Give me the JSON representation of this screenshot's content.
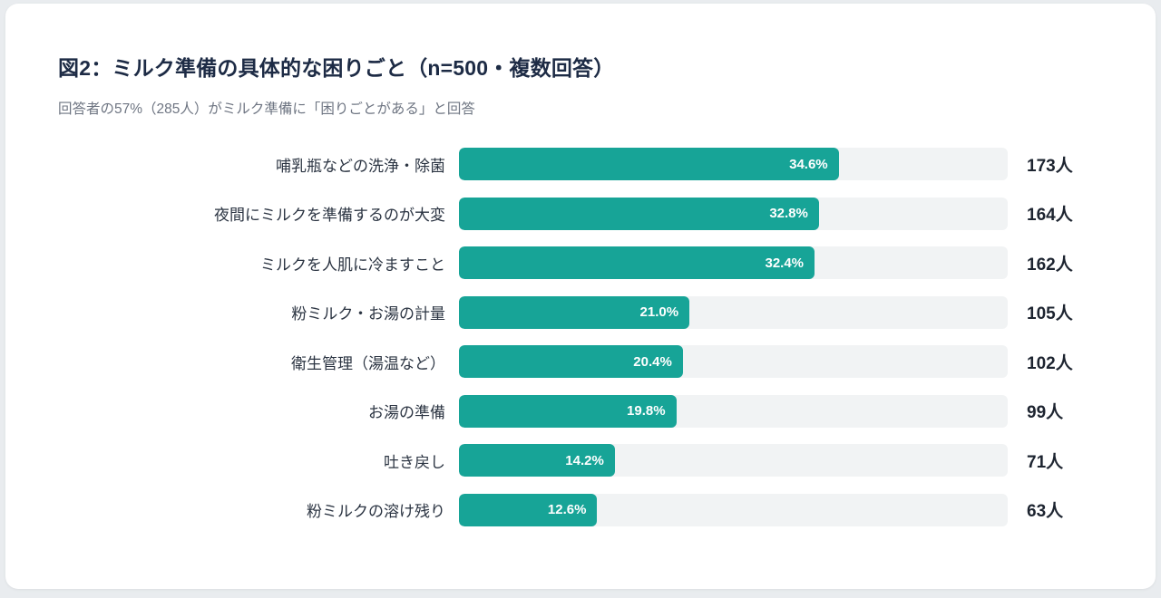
{
  "header": {
    "title": "図2：ミルク準備の具体的な困りごと（n=500・複数回答）",
    "subtitle": "回答者の57%（285人）がミルク準備に「困りごとがある」と回答"
  },
  "chart_data": {
    "type": "bar",
    "orientation": "horizontal",
    "title": "図2：ミルク準備の具体的な困りごと（n=500・複数回答）",
    "subtitle": "回答者の57%（285人）がミルク準備に「困りごとがある」と回答",
    "n": 500,
    "categories": [
      "哺乳瓶などの洗浄・除菌",
      "夜間にミルクを準備するのが大変",
      "ミルクを人肌に冷ますこと",
      "粉ミルク・お湯の計量",
      "衛生管理（湯温など）",
      "お湯の準備",
      "吐き戻し",
      "粉ミルクの溶け残り"
    ],
    "values_percent": [
      34.6,
      32.8,
      32.4,
      21.0,
      20.4,
      19.8,
      14.2,
      12.6
    ],
    "value_labels": [
      "34.6%",
      "32.8%",
      "32.4%",
      "21.0%",
      "20.4%",
      "19.8%",
      "14.2%",
      "12.6%"
    ],
    "counts": [
      173,
      164,
      162,
      105,
      102,
      99,
      71,
      63
    ],
    "count_labels": [
      "173人",
      "164人",
      "162人",
      "105人",
      "102人",
      "99人",
      "71人",
      "63人"
    ],
    "xlim": [
      0,
      50
    ],
    "bar_color": "#17a497",
    "track_color": "#f1f3f4",
    "legend": "none",
    "grid": "off"
  }
}
